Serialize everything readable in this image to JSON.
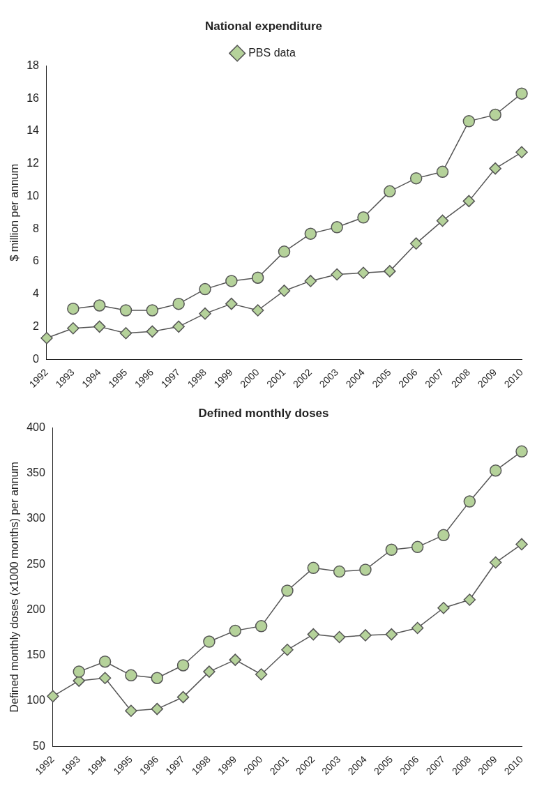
{
  "chart_data": [
    {
      "type": "line",
      "title": "National expenditure",
      "ylabel": "$ million per annum",
      "categories": [
        "1992",
        "1993",
        "1994",
        "1995",
        "1996",
        "1997",
        "1998",
        "1999",
        "2000",
        "2001",
        "2002",
        "2003",
        "2004",
        "2005",
        "2006",
        "2007",
        "2008",
        "2009",
        "2010"
      ],
      "series": [
        {
          "color": "#b5d29a",
          "marker": "circle",
          "values": [
            null,
            3.1,
            3.3,
            3.0,
            3.0,
            3.4,
            4.3,
            4.8,
            5.0,
            6.6,
            7.7,
            8.1,
            8.7,
            10.3,
            11.1,
            11.5,
            14.6,
            15.0,
            16.3
          ]
        },
        {
          "name": "PBS data",
          "color": "#b5d29a",
          "marker": "diamond",
          "values": [
            1.3,
            1.9,
            2.0,
            1.6,
            1.7,
            2.0,
            2.8,
            3.4,
            3.0,
            4.2,
            4.8,
            5.2,
            5.3,
            5.4,
            7.1,
            8.5,
            9.7,
            11.7,
            12.7
          ]
        }
      ],
      "ylim": [
        0,
        18
      ],
      "yticks": [
        0,
        2,
        4,
        6,
        8,
        10,
        12,
        14,
        16,
        18
      ],
      "grid": false,
      "legend": "top"
    },
    {
      "type": "line",
      "title": "Defined monthly doses",
      "ylabel": "Defined monthly doses (x1000 months) per annum",
      "categories": [
        "1992",
        "1993",
        "1994",
        "1995",
        "1996",
        "1997",
        "1998",
        "1999",
        "2000",
        "2001",
        "2002",
        "2003",
        "2004",
        "2005",
        "2006",
        "2007",
        "2008",
        "2009",
        "2010"
      ],
      "series": [
        {
          "color": "#b5d29a",
          "marker": "circle",
          "values": [
            null,
            132,
            143,
            128,
            125,
            139,
            165,
            177,
            182,
            221,
            246,
            242,
            244,
            266,
            269,
            282,
            319,
            353,
            374
          ]
        },
        {
          "color": "#b5d29a",
          "marker": "diamond",
          "values": [
            105,
            122,
            125,
            89,
            91,
            104,
            132,
            145,
            129,
            156,
            173,
            170,
            172,
            173,
            180,
            202,
            211,
            252,
            272
          ]
        }
      ],
      "ylim": [
        50,
        400
      ],
      "yticks": [
        50,
        100,
        150,
        200,
        250,
        300,
        350,
        400
      ],
      "grid": false
    }
  ]
}
